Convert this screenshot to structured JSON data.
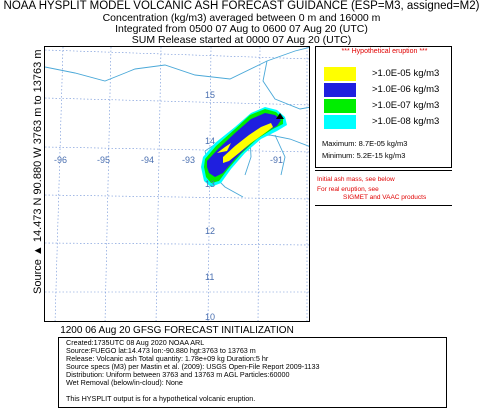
{
  "header": {
    "title": "NOAA HYSPLIT MODEL VOLCANIC ASH FORECAST GUIDANCE (ESP=M3, assigned=M2)",
    "line1": "Concentration  (kg/m3) averaged between     0 m and 16000 m",
    "line2": "Integrated from 0500 07 Aug to 0600 07 Aug 20 (UTC)",
    "line3": "SUM  Release started at 0000 07 Aug 20 (UTC)"
  },
  "map": {
    "y_axis_label": "Source ▲ 14.473  N 90.880  W  3763 m to 13763 m",
    "lon_labels": [
      "-96",
      "-95",
      "-94",
      "-93",
      "-91"
    ],
    "lat_labels": [
      "15",
      "14",
      "13",
      "12",
      "11",
      "10"
    ],
    "grid_color": "#6b8fd6",
    "coast_color": "#4aa8d8",
    "source_marker_color": "#000000"
  },
  "legend": {
    "title": "*** Hypothetical eruption ***",
    "items": [
      {
        "label": ">1.0E-05 kg/m3",
        "color": "#ffff00"
      },
      {
        "label": ">1.0E-06 kg/m3",
        "color": "#1f1fdf"
      },
      {
        "label": ">1.0E-07 kg/m3",
        "color": "#00ee00"
      },
      {
        "label": ">1.0E-08 kg/m3",
        "color": "#00ffff"
      }
    ],
    "maximum": "Maximum: 8.7E-05 kg/m3",
    "minimum": "Minimum:  5.2E-15 kg/m3"
  },
  "note": {
    "line1": "Initial ash mass, see below",
    "line2": "For real eruption, see",
    "line3": "SIGMET and VAAC products"
  },
  "forecast_init": "1200 06 Aug 20 GFSG FORECAST INITIALIZATION",
  "info": {
    "lines": [
      "Created:1735UTC 08 Aug 2020 NOAA ARL",
      "Source:FUEGO  lat:14.473  lon:-90.880  hgt:3763 to 13763 m",
      "Release: Volcanic ash   Total quantity: 1.78e+09 kg  Duration:5 hr",
      "Source specs (M3) per Mastin et al. (2009): USGS Open-File Report 2009-1133",
      "Distribution: Uniform between 3763 and 13763 m AGL    Particles:60000",
      "Wet Removal (below/in-cloud): None",
      "",
      "This HYSPLIT output is for a hypothetical volcanic eruption."
    ]
  }
}
